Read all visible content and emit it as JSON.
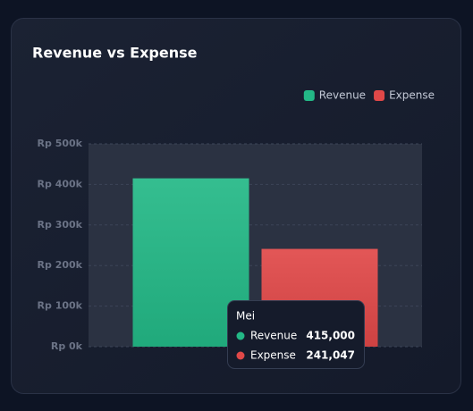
{
  "chart_data": {
    "type": "bar",
    "title": "Revenue vs Expense",
    "categories": [
      "Mei"
    ],
    "series": [
      {
        "name": "Revenue",
        "color": "#23b886",
        "values": [
          415000
        ],
        "value_labels": [
          "415,000"
        ]
      },
      {
        "name": "Expense",
        "color": "#e04848",
        "values": [
          241047
        ],
        "value_labels": [
          "241,047"
        ]
      }
    ],
    "ylim": [
      0,
      500000
    ],
    "yticks": [
      {
        "value": 0,
        "label": "Rp 0k"
      },
      {
        "value": 100000,
        "label": "Rp 100k"
      },
      {
        "value": 200000,
        "label": "Rp 200k"
      },
      {
        "value": 300000,
        "label": "Rp 300k"
      },
      {
        "value": 400000,
        "label": "Rp 400k"
      },
      {
        "value": 500000,
        "label": "Rp 500k"
      }
    ],
    "grid": true,
    "legend": "top-right"
  }
}
